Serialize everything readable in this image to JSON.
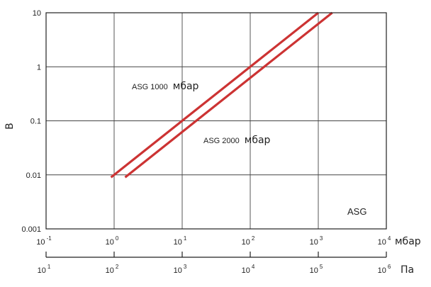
{
  "chart_data": {
    "type": "line",
    "scale": "log-log",
    "grid": true,
    "ylabel": "В",
    "ylim": [
      0.001,
      10
    ],
    "y_ticks": [
      "0.001",
      "0.01",
      "0.1",
      "1",
      "10"
    ],
    "x_axis_mbar": {
      "unit": "мбар",
      "range": [
        0.1,
        10000
      ],
      "tick_exponents": [
        "-1",
        "0",
        "1",
        "2",
        "3",
        "4"
      ]
    },
    "x_axis_pa": {
      "unit": "Па",
      "range": [
        10,
        1000000
      ],
      "tick_exponents": [
        "1",
        "2",
        "3",
        "4",
        "5",
        "6"
      ]
    },
    "series": [
      {
        "name": "ASG 1000 мбар",
        "label_prefix": "ASG 1000",
        "label_unit": "мбар",
        "color": "#cc3333",
        "x": [
          0.9,
          1000
        ],
        "y": [
          0.009,
          10
        ]
      },
      {
        "name": "ASG 2000 мбар",
        "label_prefix": "ASG 2000",
        "label_unit": "мбар",
        "color": "#cc3333",
        "x": [
          1.45,
          1600
        ],
        "y": [
          0.009,
          10
        ]
      }
    ],
    "corner_label": "ASG"
  }
}
